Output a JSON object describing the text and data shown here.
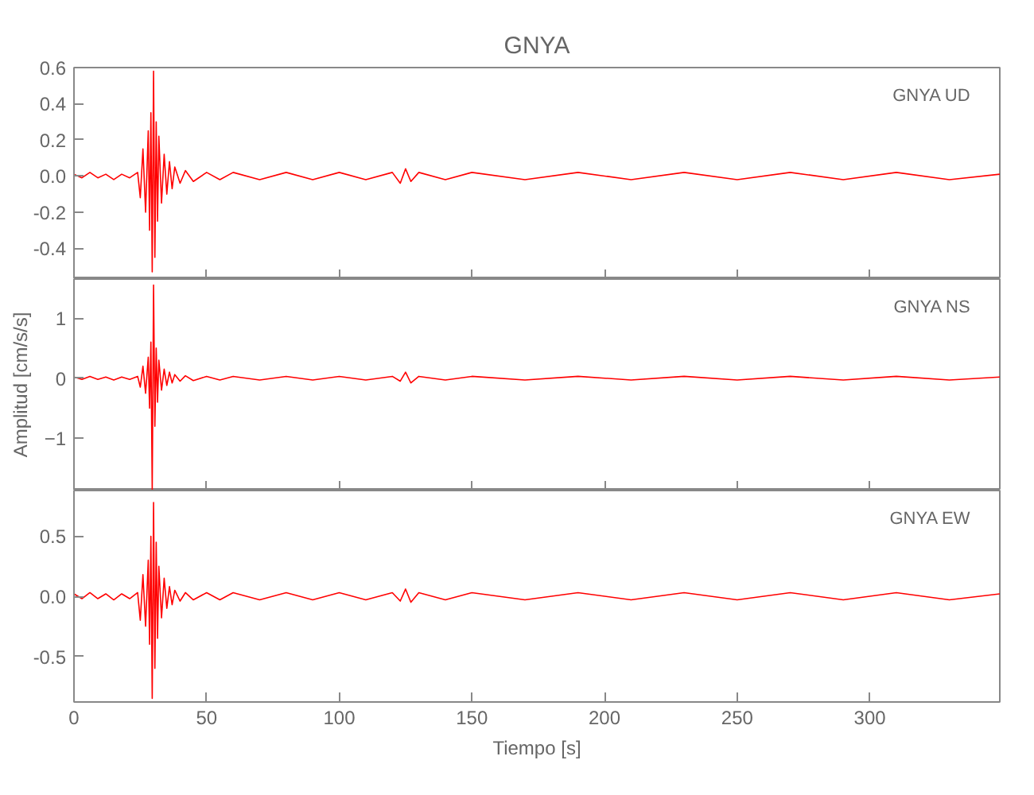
{
  "chart_data": [
    {
      "type": "line",
      "title": "GNYA",
      "annotations": [
        "GNYA   UD"
      ],
      "tick_labels": "y",
      "grid": false,
      "line_style": "solid",
      "xlim": [
        0,
        349
      ],
      "xticks": [
        0,
        50,
        100,
        150,
        200,
        250,
        300
      ],
      "ylim": [
        -0.57,
        0.6
      ],
      "yticks": [
        {
          "value": -0.4,
          "label": "-0.4"
        },
        {
          "value": -0.2,
          "label": "-0.2"
        },
        {
          "value": 0,
          "label": "0.0"
        },
        {
          "value": 0.2,
          "label": "0.2"
        },
        {
          "value": 0.4,
          "label": "0.4"
        },
        {
          "value": 0.6,
          "label": "0.6"
        }
      ],
      "x": [
        0,
        3,
        6,
        9,
        12,
        15,
        18,
        21,
        24,
        25,
        26,
        27,
        28,
        28.5,
        29,
        29.5,
        30,
        30.5,
        31,
        31.5,
        32,
        33,
        34,
        35,
        36,
        37,
        38,
        40,
        42,
        45,
        50,
        55,
        60,
        70,
        80,
        90,
        100,
        110,
        120,
        123,
        125,
        127,
        130,
        140,
        150,
        170,
        190,
        210,
        230,
        250,
        270,
        290,
        310,
        330,
        349
      ],
      "series": [
        {
          "color": "#ff0000",
          "values": [
            0.01,
            -0.01,
            0.02,
            -0.01,
            0.01,
            -0.02,
            0.01,
            -0.01,
            0.02,
            -0.12,
            0.15,
            -0.2,
            0.25,
            -0.3,
            0.35,
            -0.53,
            0.58,
            -0.45,
            0.3,
            -0.25,
            0.22,
            -0.15,
            0.12,
            -0.1,
            0.08,
            -0.07,
            0.05,
            -0.04,
            0.03,
            -0.03,
            0.02,
            -0.02,
            0.02,
            -0.02,
            0.02,
            -0.02,
            0.02,
            -0.02,
            0.02,
            -0.04,
            0.04,
            -0.03,
            0.02,
            -0.02,
            0.02,
            -0.02,
            0.02,
            -0.02,
            0.02,
            -0.02,
            0.02,
            -0.02,
            0.02,
            -0.02,
            0.01
          ]
        }
      ]
    },
    {
      "type": "line",
      "ylabel": "Amplitud [cm/s/s]",
      "annotations": [
        "GNYA   NS"
      ],
      "tick_labels": "y",
      "grid": false,
      "line_style": "solid",
      "xlim": [
        0,
        349
      ],
      "xticks": [
        0,
        50,
        100,
        150,
        200,
        250,
        300
      ],
      "ylim": [
        -1.87,
        1.65
      ],
      "yticks": [
        -1,
        0,
        1
      ],
      "x": [
        0,
        3,
        6,
        9,
        12,
        15,
        18,
        21,
        24,
        25,
        26,
        27,
        28,
        28.5,
        29,
        29.5,
        30,
        30.5,
        31,
        31.5,
        32,
        33,
        34,
        35,
        36,
        37,
        38,
        40,
        42,
        45,
        50,
        55,
        60,
        70,
        80,
        90,
        100,
        110,
        120,
        123,
        125,
        127,
        130,
        140,
        150,
        170,
        190,
        210,
        230,
        250,
        270,
        290,
        310,
        330,
        349
      ],
      "series": [
        {
          "color": "#ff0000",
          "values": [
            0.02,
            -0.02,
            0.03,
            -0.02,
            0.02,
            -0.03,
            0.02,
            -0.02,
            0.03,
            -0.15,
            0.2,
            -0.25,
            0.35,
            -0.5,
            0.6,
            -1.85,
            1.55,
            -0.8,
            0.5,
            -0.4,
            0.3,
            -0.2,
            0.15,
            -0.12,
            0.1,
            -0.08,
            0.06,
            -0.05,
            0.04,
            -0.04,
            0.03,
            -0.03,
            0.03,
            -0.03,
            0.03,
            -0.03,
            0.03,
            -0.03,
            0.03,
            -0.05,
            0.1,
            -0.08,
            0.03,
            -0.03,
            0.03,
            -0.03,
            0.03,
            -0.03,
            0.03,
            -0.03,
            0.03,
            -0.03,
            0.03,
            -0.03,
            0.02
          ]
        }
      ]
    },
    {
      "type": "line",
      "xlabel": "Tiempo [s]",
      "annotations": [
        "GNYA   EW"
      ],
      "grid": false,
      "line_style": "solid",
      "xlim": [
        0,
        349
      ],
      "xticks": [
        0,
        50,
        100,
        150,
        200,
        250,
        300
      ],
      "ylim": [
        -0.88,
        0.88
      ],
      "yticks": [
        {
          "value": -0.5,
          "label": "-0.5"
        },
        {
          "value": 0,
          "label": "0.0"
        },
        {
          "value": 0.5,
          "label": "0.5"
        }
      ],
      "x": [
        0,
        3,
        6,
        9,
        12,
        15,
        18,
        21,
        24,
        25,
        26,
        27,
        28,
        28.5,
        29,
        29.5,
        30,
        30.5,
        31,
        31.5,
        32,
        33,
        34,
        35,
        36,
        37,
        38,
        40,
        42,
        45,
        50,
        55,
        60,
        70,
        80,
        90,
        100,
        110,
        120,
        123,
        125,
        127,
        130,
        140,
        150,
        170,
        190,
        210,
        230,
        250,
        270,
        290,
        310,
        330,
        349
      ],
      "series": [
        {
          "color": "#ff0000",
          "values": [
            0.02,
            -0.02,
            0.03,
            -0.02,
            0.02,
            -0.03,
            0.02,
            -0.02,
            0.03,
            -0.2,
            0.18,
            -0.25,
            0.3,
            -0.4,
            0.5,
            -0.85,
            0.78,
            -0.6,
            0.45,
            -0.35,
            0.25,
            -0.18,
            0.15,
            -0.1,
            0.08,
            -0.07,
            0.05,
            -0.04,
            0.03,
            -0.03,
            0.03,
            -0.03,
            0.03,
            -0.03,
            0.03,
            -0.03,
            0.03,
            -0.03,
            0.03,
            -0.04,
            0.06,
            -0.05,
            0.03,
            -0.03,
            0.03,
            -0.03,
            0.03,
            -0.03,
            0.03,
            -0.03,
            0.03,
            -0.03,
            0.03,
            -0.03,
            0.02
          ]
        }
      ]
    }
  ]
}
